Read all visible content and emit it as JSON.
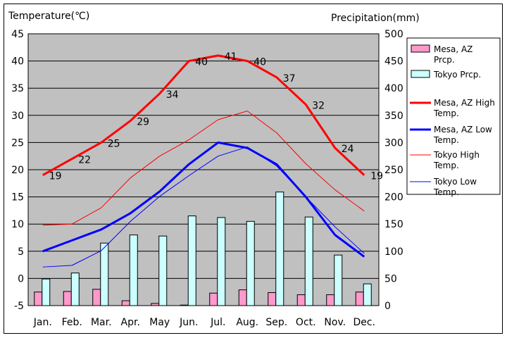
{
  "chart_data": {
    "type": "bar+line",
    "title": "",
    "ylabel_left": "Temperature(℃)",
    "ylabel_right": "Precipitation(mm)",
    "ylim_left": [
      -5,
      45
    ],
    "ylim_right": [
      0,
      500
    ],
    "yticks_left": [
      "45",
      "40",
      "35",
      "30",
      "25",
      "20",
      "15",
      "10",
      "5",
      "0",
      "-5"
    ],
    "yticks_right": [
      "500",
      "450",
      "400",
      "350",
      "300",
      "250",
      "200",
      "150",
      "100",
      "50",
      "0"
    ],
    "grid": true,
    "legend_position": "right",
    "categories": [
      "Jan.",
      "Feb.",
      "Mar.",
      "Apr.",
      "May",
      "Jun.",
      "Jul.",
      "Aug.",
      "Sep.",
      "Oct.",
      "Nov.",
      "Dec."
    ],
    "bar_series": [
      {
        "name": "Mesa, AZ Prcp.",
        "color": "#ff99cc",
        "values": [
          25,
          26,
          30,
          9,
          4,
          1,
          23,
          29,
          24,
          20,
          20,
          25
        ]
      },
      {
        "name": "Tokyo Prcp.",
        "color": "#ccffff",
        "values": [
          49,
          60,
          115,
          130,
          128,
          165,
          162,
          155,
          209,
          163,
          93,
          40
        ]
      }
    ],
    "line_series": [
      {
        "name": "Mesa, AZ High Temp.",
        "color": "#ff0000",
        "width": 3,
        "values": [
          19,
          22,
          25,
          29,
          34,
          40,
          41,
          40,
          37,
          32,
          24,
          19
        ]
      },
      {
        "name": "Mesa, AZ Low Temp.",
        "color": "#0000ff",
        "width": 3,
        "values": [
          5,
          7,
          9,
          12,
          16,
          21,
          25,
          24,
          21,
          15,
          8,
          4
        ]
      },
      {
        "name": "Tokyo High Temp.",
        "color": "#ff0000",
        "width": 1,
        "values": [
          9.8,
          10,
          13,
          18.5,
          22.5,
          25.5,
          29.2,
          30.8,
          26.8,
          21.1,
          16.3,
          12.4
        ]
      },
      {
        "name": "Tokyo Low Temp.",
        "color": "#0000ff",
        "width": 1,
        "values": [
          2.1,
          2.4,
          5.1,
          10.5,
          15.1,
          18.9,
          22.5,
          24.2,
          20.7,
          15,
          9.5,
          4.6
        ]
      }
    ],
    "data_labels": [
      "19",
      "22",
      "25",
      "29",
      "34",
      "40",
      "41",
      "40",
      "37",
      "32",
      "24",
      "19"
    ]
  }
}
